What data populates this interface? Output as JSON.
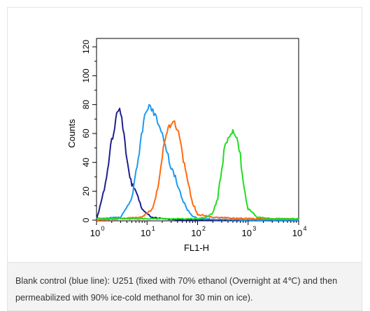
{
  "chart_data": {
    "type": "line",
    "xlabel": "FL1-H",
    "ylabel": "Counts",
    "x_scale": "log",
    "xlim": [
      1,
      10000
    ],
    "ylim": [
      0,
      120
    ],
    "grid": false,
    "x_ticks": [
      {
        "value": 1,
        "base": "10",
        "exp": "0"
      },
      {
        "value": 10,
        "base": "10",
        "exp": "1"
      },
      {
        "value": 100,
        "base": "10",
        "exp": "2"
      },
      {
        "value": 1000,
        "base": "10",
        "exp": "3"
      },
      {
        "value": 10000,
        "base": "10",
        "exp": "4"
      }
    ],
    "y_ticks": [
      "0",
      "20",
      "40",
      "60",
      "80",
      "100",
      "120"
    ],
    "series": [
      {
        "color": "#1f1f8f",
        "x": [
          1,
          1.5,
          2,
          2.5,
          3,
          3.5,
          4,
          5,
          6,
          8,
          12,
          20,
          50,
          100,
          1000,
          10000
        ],
        "y": [
          0,
          25,
          55,
          73,
          76,
          58,
          40,
          25,
          20,
          8,
          2,
          1,
          0,
          0,
          0,
          0
        ]
      },
      {
        "color": "#1e9af0",
        "x": [
          1,
          3,
          5,
          7,
          9,
          11,
          13,
          16,
          20,
          25,
          30,
          40,
          50,
          60,
          80,
          100,
          1000,
          10000
        ],
        "y": [
          1,
          2,
          15,
          48,
          72,
          80,
          76,
          70,
          60,
          47,
          37,
          25,
          15,
          8,
          3,
          1,
          0,
          0
        ]
      },
      {
        "color": "#ff6a10",
        "x": [
          1,
          8,
          13,
          17,
          20,
          25,
          30,
          35,
          40,
          50,
          60,
          80,
          100,
          200,
          1000,
          10000
        ],
        "y": [
          0,
          2,
          8,
          25,
          45,
          62,
          67,
          68,
          63,
          45,
          30,
          12,
          4,
          2,
          1,
          1
        ]
      },
      {
        "color": "#22dd22",
        "x": [
          1,
          100,
          150,
          200,
          250,
          300,
          350,
          400,
          500,
          600,
          700,
          800,
          1000,
          1500,
          3000,
          10000
        ],
        "y": [
          1,
          1,
          2,
          5,
          15,
          35,
          52,
          58,
          61,
          58,
          45,
          25,
          8,
          2,
          1,
          1
        ]
      }
    ]
  },
  "caption": "Blank control (blue line): U251 (fixed with 70% ethanol (Overnight at 4℃) and then permeabilized with 90% ice-cold methanol for 30 min on ice)."
}
